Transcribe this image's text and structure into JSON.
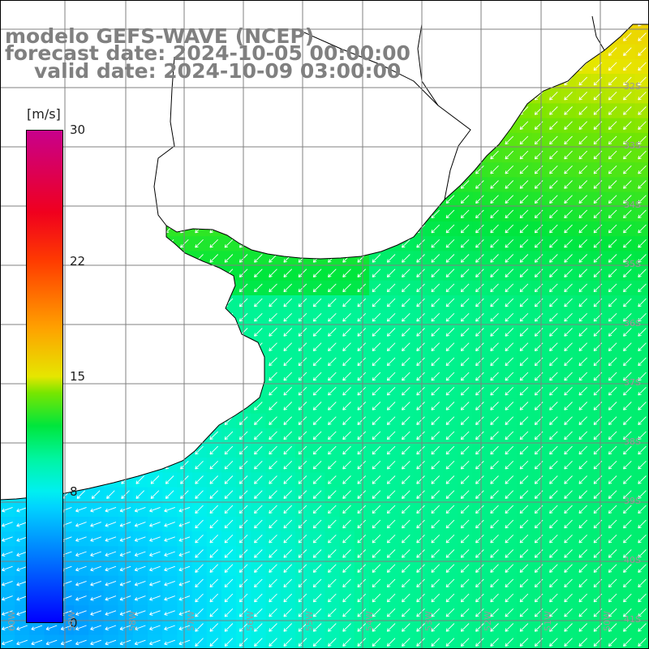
{
  "title": {
    "line1": "modelo GEFS-WAVE (NCEP)",
    "line2": "forecast date: 2024-10-05 00:00:00",
    "line3": "valid date: 2024-10-09 03:00:00"
  },
  "colorbar": {
    "unit": "[m/s]",
    "ticks": [
      {
        "label": "30",
        "value": 30
      },
      {
        "label": "22",
        "value": 22
      },
      {
        "label": "15",
        "value": 15
      },
      {
        "label": "8",
        "value": 8
      },
      {
        "label": "0",
        "value": 0
      }
    ]
  },
  "lat_labels": [
    "32S",
    "33S",
    "34S",
    "35S",
    "36S",
    "37S",
    "38S",
    "39S",
    "40S",
    "41S"
  ],
  "lon_labels": [
    "60W",
    "59W",
    "58W",
    "57W",
    "56W",
    "55W",
    "54W",
    "53W",
    "52W",
    "51W",
    "50W"
  ],
  "colors": {
    "grid": "#808080",
    "land": "#ffffff",
    "coast": "#000000",
    "title": "#808080",
    "arrows": "#ffffff"
  },
  "chart_data": {
    "type": "heatmap",
    "variable": "wind speed",
    "unit": "[m/s]",
    "colorbar_range": [
      0,
      30
    ],
    "field_range_estimate": [
      5,
      13
    ]
  }
}
